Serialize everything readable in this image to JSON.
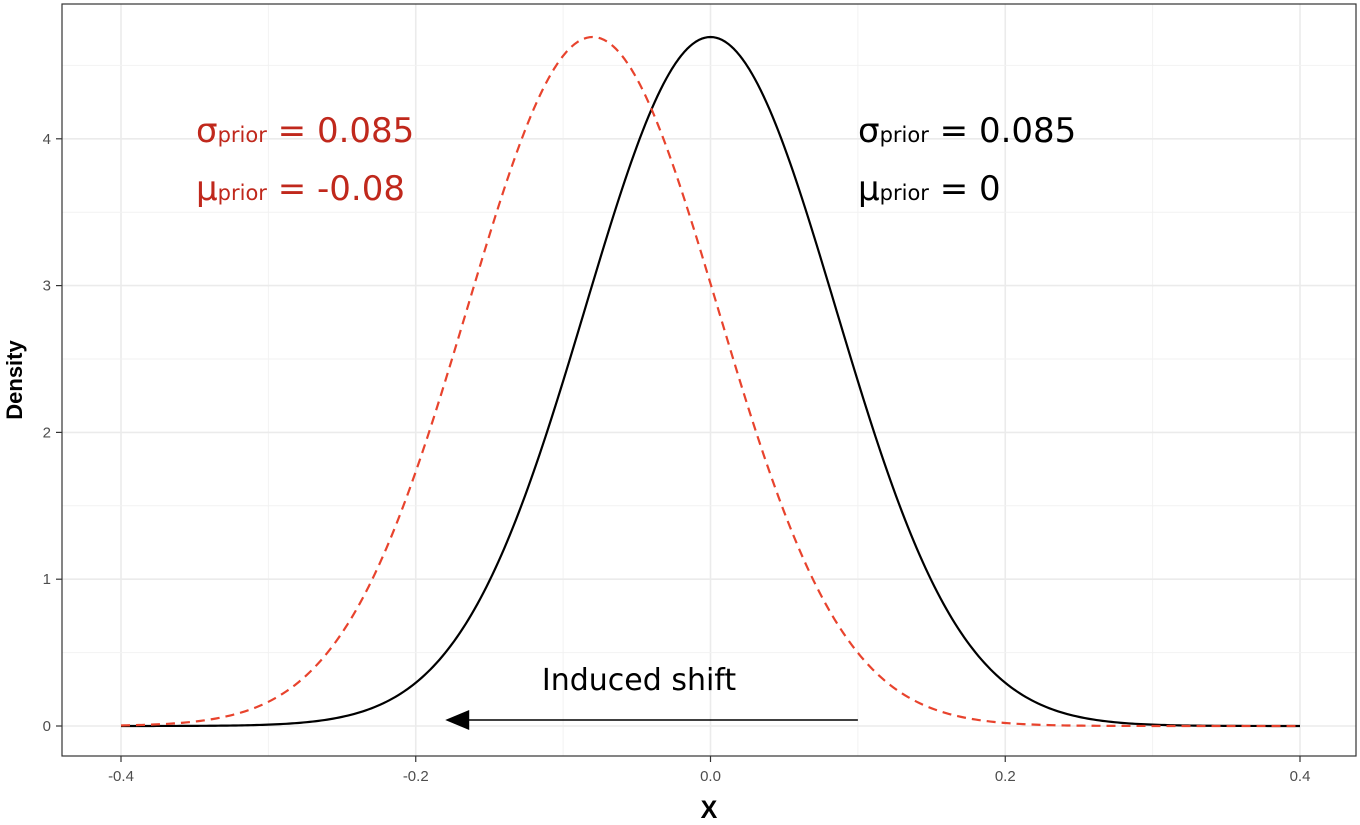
{
  "chart_data": {
    "type": "line",
    "xlabel": "X",
    "ylabel": "Density",
    "xlim": [
      -0.4,
      0.4
    ],
    "ylim": [
      0,
      4.7
    ],
    "x_ticks": [
      "-0.4",
      "-0.2",
      "0.0",
      "0.2",
      "0.4"
    ],
    "y_ticks": [
      "0",
      "1",
      "2",
      "3",
      "4"
    ],
    "grid": true,
    "series": [
      {
        "distribution": "normal",
        "mean": 0,
        "sd": 0.085,
        "line_style": "solid",
        "color": "#000000",
        "x": [
          -0.4,
          -0.3,
          -0.25,
          -0.2,
          -0.15,
          -0.1,
          -0.05,
          0,
          0.05,
          0.1,
          0.15,
          0.2,
          0.25,
          0.3,
          0.4
        ],
        "y": [
          0.0,
          0.01,
          0.06,
          0.29,
          0.99,
          2.35,
          3.95,
          4.69,
          3.95,
          2.35,
          0.99,
          0.29,
          0.06,
          0.01,
          0.0
        ]
      },
      {
        "distribution": "normal",
        "mean": -0.08,
        "sd": 0.085,
        "line_style": "dashed",
        "color": "#e8432d",
        "x": [
          -0.4,
          -0.3,
          -0.25,
          -0.2,
          -0.15,
          -0.1,
          -0.05,
          0,
          0.05,
          0.1,
          0.15,
          0.2,
          0.3,
          0.4
        ],
        "y": [
          0.0,
          0.17,
          0.63,
          1.76,
          3.35,
          4.56,
          4.41,
          3.0,
          1.46,
          0.5,
          0.12,
          0.02,
          0.0,
          0.0
        ]
      }
    ],
    "annotations": {
      "red": {
        "color": "#c0281c",
        "line1": {
          "symbol": "σ",
          "sub": "prior",
          "rest": " = 0.085"
        },
        "line2": {
          "symbol": "μ",
          "sub": "prior",
          "rest": " = -0.08"
        }
      },
      "black": {
        "color": "#000000",
        "line1": {
          "symbol": "σ",
          "sub": "prior",
          "rest": " = 0.085"
        },
        "line2": {
          "symbol": "μ",
          "sub": "prior",
          "rest": " = 0"
        }
      },
      "arrow_label": "Induced shift",
      "arrow_from_x": 0.1,
      "arrow_to_x": -0.18
    }
  }
}
